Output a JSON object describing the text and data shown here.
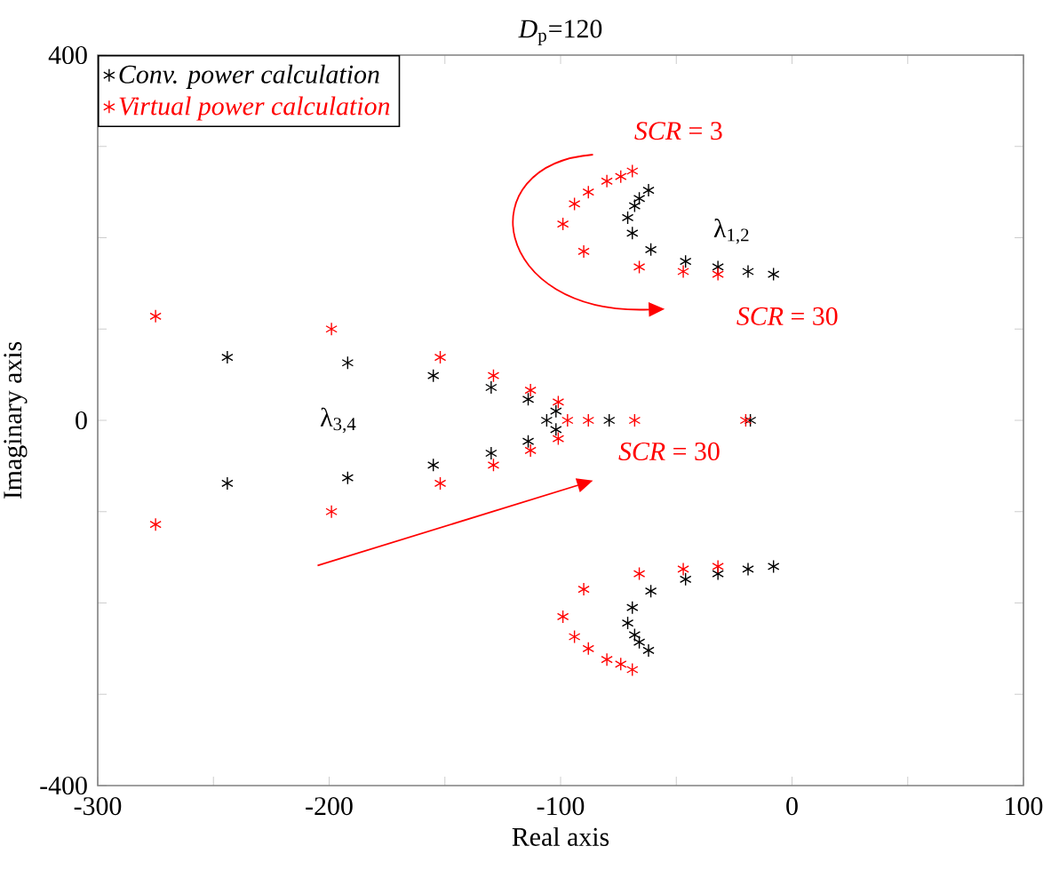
{
  "chart_data": {
    "type": "scatter",
    "title": "*D*$_{p}$=120",
    "xlabel": "Real axis",
    "ylabel": "Imaginary axis",
    "xlim": [
      -300,
      100
    ],
    "ylim": [
      -400,
      400
    ],
    "xticks": [
      -300,
      {
        "value": -250,
        "label": null
      },
      -200,
      {
        "value": -150,
        "label": null
      },
      -100,
      {
        "value": -50,
        "label": null
      },
      0,
      {
        "value": 50,
        "label": null
      },
      100
    ],
    "yticks": [
      -400,
      {
        "value": -300,
        "label": null
      },
      {
        "value": -200,
        "label": null
      },
      {
        "value": -100,
        "label": null
      },
      0,
      {
        "value": 100,
        "label": null
      },
      {
        "value": 200,
        "label": null
      },
      {
        "value": 300,
        "label": null
      },
      400
    ],
    "marker": "cross",
    "legend": "top left",
    "grid": false,
    "annotations": [
      "*SCR* = 3",
      "*SCR* = 30",
      "*SCR* = 30",
      "λ$_{1,2}$",
      "λ$_{3,4}$"
    ],
    "series": [
      {
        "name": "Conv. power calculation",
        "color": "#000000",
        "x": [
          -8,
          -19,
          -32,
          -46,
          -61,
          -69,
          -71,
          -68,
          -66,
          -62,
          -8,
          -19,
          -32,
          -46,
          -61,
          -69,
          -71,
          -68,
          -66,
          -62,
          -244,
          -192,
          -155,
          -130,
          -114,
          -102,
          -244,
          -192,
          -155,
          -130,
          -114,
          -102,
          -106,
          -79,
          -18
        ],
        "values": [
          160,
          163,
          168,
          174,
          187,
          205,
          222,
          235,
          243,
          252,
          -160,
          -163,
          -168,
          -174,
          -187,
          -205,
          -222,
          -235,
          -243,
          -252,
          69,
          63,
          49,
          36,
          23,
          10,
          -69,
          -63,
          -49,
          -36,
          -23,
          -10,
          0,
          0,
          0
        ]
      },
      {
        "name": "Virtual power calculation",
        "color": "#ff0000",
        "x": [
          -32,
          -47,
          -66,
          -90,
          -99,
          -94,
          -88,
          -80,
          -74,
          -69,
          -32,
          -47,
          -66,
          -90,
          -99,
          -94,
          -88,
          -80,
          -74,
          -69,
          -275,
          -199,
          -152,
          -129,
          -113,
          -101,
          -275,
          -199,
          -152,
          -129,
          -113,
          -101,
          -97,
          -88,
          -68,
          -20
        ],
        "values": [
          160,
          163,
          168,
          185,
          215,
          237,
          250,
          262,
          267,
          273,
          -160,
          -163,
          -168,
          -185,
          -215,
          -237,
          -250,
          -262,
          -267,
          -273,
          114,
          100,
          69,
          49,
          33,
          20,
          -114,
          -100,
          -69,
          -49,
          -33,
          -20,
          0,
          0,
          0,
          0
        ]
      }
    ]
  }
}
